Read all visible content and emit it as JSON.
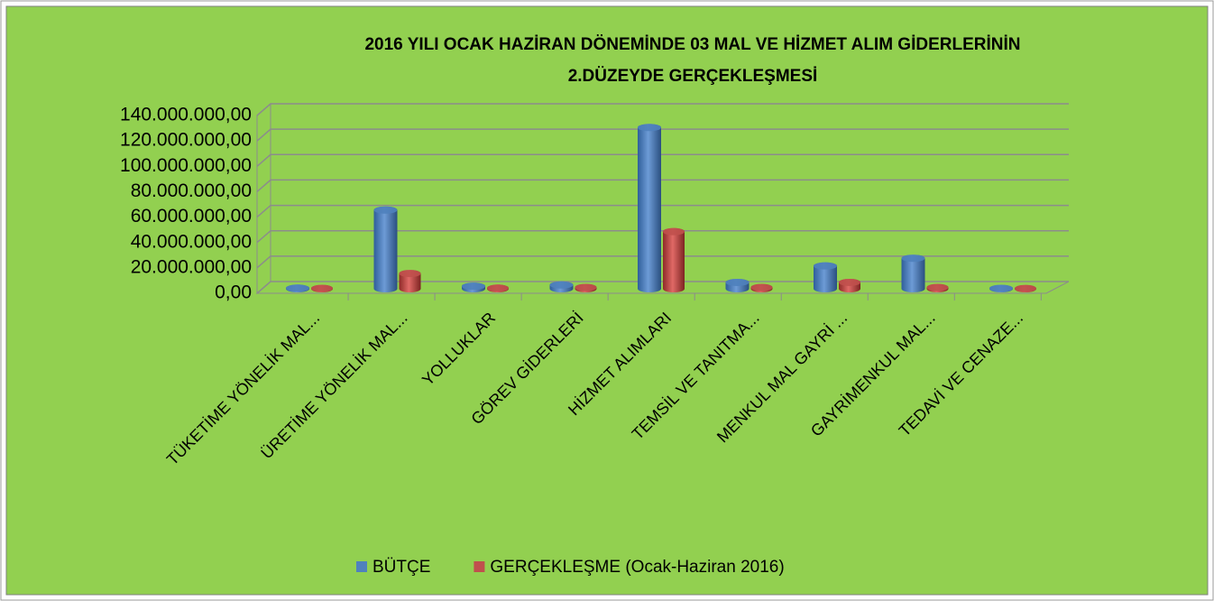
{
  "chart_data": {
    "type": "bar3d",
    "title": [
      "2016 YILI OCAK HAZİRAN DÖNEMİNDE 03 MAL VE HİZMET ALIM GİDERLERİNİN",
      "2.DÜZEYDE GERÇEKLEŞMESİ"
    ],
    "categories": [
      "TÜKETİME YÖNELİK MAL...",
      "ÜRETİME YÖNELİK MAL...",
      "YOLLUKLAR",
      "GÖREV GİDERLERİ",
      "HİZMET ALIMLARI",
      "TEMSİL VE TANITMA...",
      "MENKUL MAL GAYRİ ...",
      "GAYRİMENKUL MAL...",
      "TEDAVİ VE CENAZE..."
    ],
    "series": [
      {
        "name": "BÜTÇE",
        "color": "#4f81bd",
        "values": [
          500000,
          62000000,
          2000000,
          3000000,
          127000000,
          5000000,
          18000000,
          24000000,
          300000
        ]
      },
      {
        "name": "GERÇEKLEŞME (Ocak-Haziran 2016)",
        "color": "#c0504d",
        "values": [
          300000,
          12000000,
          500000,
          1000000,
          45000000,
          1000000,
          5000000,
          1000000,
          200000
        ]
      }
    ],
    "ylim": [
      0,
      140000000
    ],
    "yticks": [
      {
        "value": 0,
        "label": "0,00"
      },
      {
        "value": 20000000,
        "label": "20.000.000,00"
      },
      {
        "value": 40000000,
        "label": "40.000.000,00"
      },
      {
        "value": 60000000,
        "label": "60.000.000,00"
      },
      {
        "value": 80000000,
        "label": "80.000.000,00"
      },
      {
        "value": 100000000,
        "label": "100.000.000,00"
      },
      {
        "value": 120000000,
        "label": "120.000.000,00"
      },
      {
        "value": 140000000,
        "label": "140.000.000,00"
      }
    ],
    "grid": true,
    "legend": "bottom",
    "background": "#92d050"
  }
}
